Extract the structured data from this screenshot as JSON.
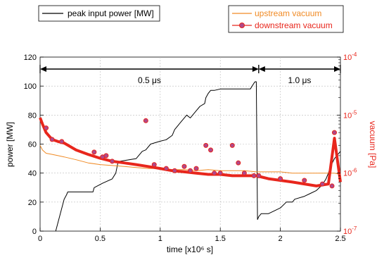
{
  "chart_data": {
    "type": "line",
    "xlabel": "time [x10⁶ s]",
    "ylabel_left": "power [MW]",
    "ylabel_right": "vacuum [Pa]",
    "xlim": [
      0,
      2.5
    ],
    "ylim_left": [
      0,
      120
    ],
    "ylim_right_log": [
      1e-07,
      0.0001
    ],
    "x_ticks": [
      "0",
      "0.5",
      "1",
      "1.5",
      "2",
      "2.5"
    ],
    "y_left_ticks": [
      "0",
      "20",
      "40",
      "60",
      "80",
      "100",
      "120"
    ],
    "y_right_ticks": [
      {
        "base": "10",
        "exp": "-7"
      },
      {
        "base": "10",
        "exp": "-6"
      },
      {
        "base": "10",
        "exp": "-5"
      },
      {
        "base": "10",
        "exp": "-4"
      }
    ],
    "legend_left": [
      {
        "name": "peak input power [MW]",
        "color": "#000000"
      }
    ],
    "legend_right": [
      {
        "name": "upstream vacuum",
        "color": "#f08a24"
      },
      {
        "name": "downstream vacuum",
        "color": "#e8261c"
      }
    ],
    "annotations": [
      {
        "text": "0.5 μs",
        "from": 0,
        "to": 1.82
      },
      {
        "text": "1.0 μs",
        "from": 1.82,
        "to": 2.5
      }
    ],
    "series": [
      {
        "name": "peak input power [MW]",
        "axis": "left",
        "color": "#000000",
        "x": [
          0.13,
          0.2,
          0.22,
          0.23,
          0.44,
          0.45,
          0.52,
          0.6,
          0.63,
          0.65,
          0.8,
          0.85,
          0.88,
          0.92,
          1.0,
          1.05,
          1.1,
          1.12,
          1.17,
          1.2,
          1.22,
          1.25,
          1.3,
          1.33,
          1.37,
          1.38,
          1.4,
          1.42,
          1.45,
          1.5,
          1.55,
          1.6,
          1.65,
          1.7,
          1.72,
          1.75,
          1.78,
          1.79,
          1.8,
          1.81,
          1.82,
          1.84,
          1.9,
          1.95,
          2.0,
          2.05,
          2.1,
          2.12,
          2.2,
          2.25,
          2.3,
          2.35,
          2.38,
          2.4,
          2.42,
          2.45,
          2.5
        ],
        "y": [
          0,
          22,
          25,
          27,
          27,
          30,
          33,
          36,
          40,
          48,
          50,
          55,
          56,
          60,
          62,
          63,
          66,
          70,
          75,
          78,
          80,
          78,
          83,
          86,
          88,
          92,
          95,
          97,
          97,
          98,
          98,
          98,
          98,
          98,
          98,
          98,
          102,
          103,
          103,
          8,
          10,
          12,
          12,
          14,
          16,
          20,
          20,
          22,
          24,
          26,
          28,
          32,
          36,
          40,
          45,
          50,
          55
        ]
      },
      {
        "name": "upstream vacuum",
        "axis": "right",
        "color": "#f08a24",
        "x": [
          0,
          0.02,
          0.05,
          0.1,
          0.15,
          0.2,
          0.3,
          0.4,
          0.5,
          0.6,
          0.7,
          0.8,
          0.9,
          1.0,
          1.1,
          1.2,
          1.3,
          1.4,
          1.5,
          1.6,
          1.7,
          1.8,
          1.9,
          2.0,
          2.1,
          2.2,
          2.3,
          2.4,
          2.45,
          2.5
        ],
        "y": [
          3e-06,
          2.5e-06,
          2.2e-06,
          2.1e-06,
          2e-06,
          1.9e-06,
          1.7e-06,
          1.5e-06,
          1.4e-06,
          1.35e-06,
          1.3e-06,
          1.25e-06,
          1.2e-06,
          1.2e-06,
          1.15e-06,
          1.15e-06,
          1.1e-06,
          1.15e-06,
          1.1e-06,
          1.1e-06,
          1.1e-06,
          1.05e-06,
          1.05e-06,
          1.05e-06,
          1e-06,
          1e-06,
          1e-06,
          1e-06,
          1e-06,
          9.5e-07
        ]
      },
      {
        "name": "downstream vacuum",
        "axis": "right",
        "color": "#e8261c",
        "x": [
          0,
          0.02,
          0.05,
          0.1,
          0.15,
          0.2,
          0.3,
          0.4,
          0.5,
          0.6,
          0.7,
          0.8,
          0.9,
          1.0,
          1.1,
          1.2,
          1.3,
          1.4,
          1.5,
          1.6,
          1.7,
          1.8,
          1.85,
          1.9,
          2.0,
          2.1,
          2.2,
          2.3,
          2.4,
          2.45,
          2.5
        ],
        "y": [
          9e-06,
          7e-06,
          5e-06,
          3.8e-06,
          3.5e-06,
          3.3e-06,
          2.5e-06,
          2.1e-06,
          1.8e-06,
          1.6e-06,
          1.5e-06,
          1.4e-06,
          1.3e-06,
          1.2e-06,
          1.1e-06,
          1.05e-06,
          1e-06,
          9.5e-07,
          9.5e-07,
          9e-07,
          9e-07,
          9e-07,
          8.5e-07,
          8e-07,
          7.5e-07,
          7e-07,
          6.5e-07,
          6e-07,
          6.5e-07,
          4e-06,
          7e-07
        ]
      }
    ],
    "downstream_markers": {
      "x": [
        0.05,
        0.1,
        0.18,
        0.45,
        0.52,
        0.55,
        0.6,
        0.88,
        0.95,
        1.05,
        1.12,
        1.2,
        1.25,
        1.3,
        1.38,
        1.42,
        1.45,
        1.5,
        1.6,
        1.65,
        1.7,
        1.78,
        1.82,
        2.0,
        2.2,
        2.35,
        2.43,
        2.45
      ],
      "y": [
        6e-06,
        3.8e-06,
        3.5e-06,
        2.3e-06,
        1.9e-06,
        2e-06,
        1.6e-06,
        8e-06,
        1.4e-06,
        1.2e-06,
        1.1e-06,
        1.3e-06,
        1.1e-06,
        1.2e-06,
        3e-06,
        2.5e-06,
        1e-06,
        1e-06,
        3e-06,
        1.5e-06,
        1e-06,
        9e-07,
        9e-07,
        8e-07,
        7.5e-07,
        6.5e-07,
        6e-07,
        5e-06
      ]
    }
  }
}
